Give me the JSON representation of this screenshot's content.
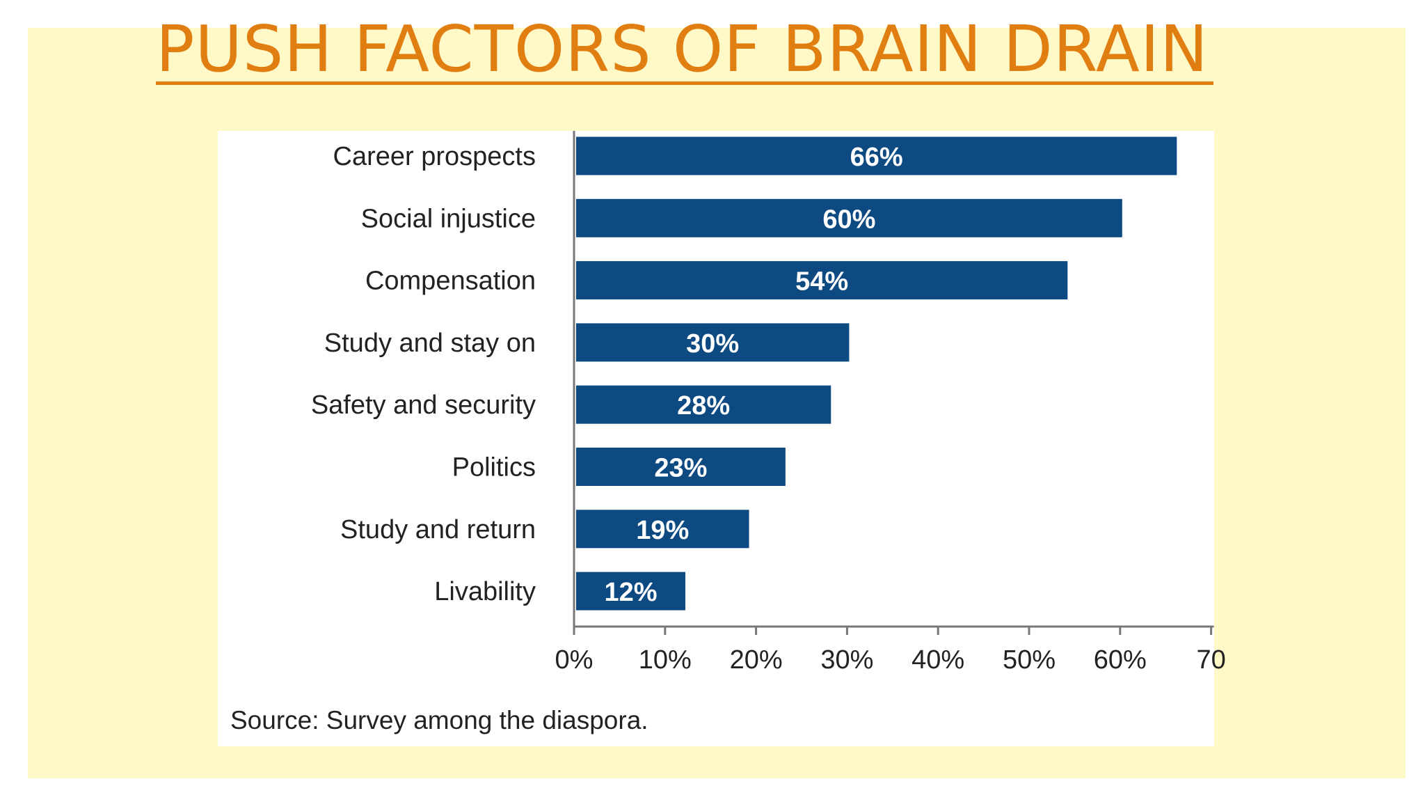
{
  "slide": {
    "title": "PUSH FACTORS OF BRAIN DRAIN",
    "source": "Source: Survey among the diaspora.",
    "colors": {
      "background": "#fff9c8",
      "title": "#e07e12",
      "bar": "#0e4a82"
    }
  },
  "chart_data": {
    "type": "bar",
    "orientation": "horizontal",
    "categories": [
      "Career prospects",
      "Social injustice",
      "Compensation",
      "Study and stay on",
      "Safety and security",
      "Politics",
      "Study and return",
      "Livability"
    ],
    "values": [
      66,
      60,
      54,
      30,
      28,
      23,
      19,
      12
    ],
    "value_labels": [
      "66%",
      "60%",
      "54%",
      "30%",
      "28%",
      "23%",
      "19%",
      "12%"
    ],
    "x_ticks": [
      "0%",
      "10%",
      "20%",
      "30%",
      "40%",
      "50%",
      "60%",
      "70"
    ],
    "xlim": [
      0,
      70
    ],
    "grid": false,
    "legend": "none"
  }
}
